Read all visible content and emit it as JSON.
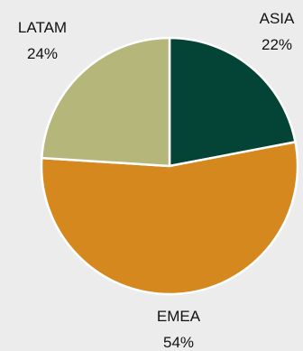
{
  "chart_data": {
    "type": "pie",
    "categories": [
      "ASIA",
      "EMEA",
      "LATAM"
    ],
    "values": [
      22,
      54,
      24
    ],
    "value_labels": [
      "22%",
      "54%",
      "24%"
    ],
    "colors": [
      "#044437",
      "#d5881e",
      "#b5b67a"
    ],
    "background": "#ececec",
    "slice_border": "#ffffff",
    "start_angle_deg": 0,
    "direction": "clockwise",
    "legend": "none"
  }
}
